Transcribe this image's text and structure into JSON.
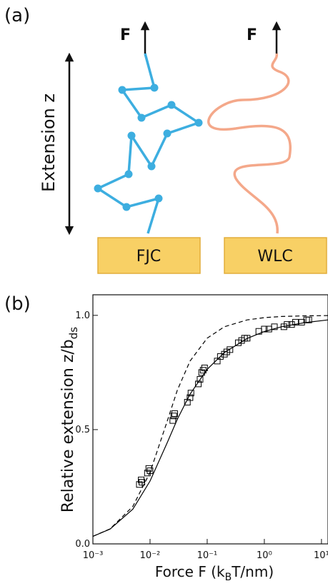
{
  "panel_a": {
    "label": "(a)",
    "force_left": "F",
    "force_right": "F",
    "extension": "Extension z",
    "box_left": "FJC",
    "box_right": "WLC"
  },
  "chart_data": {
    "type": "line",
    "panel_label": "(b)",
    "y_label": {
      "text": "Relative extension z/b",
      "subscript": "ds"
    },
    "x_label": {
      "before": "Force F (k",
      "subscript": "B",
      "after": "T/nm)"
    },
    "xscale": "log",
    "xlim": [
      0.001,
      13
    ],
    "ylim": [
      0,
      1.09
    ],
    "xticks": [
      {
        "value": 0.001,
        "label": "10⁻³"
      },
      {
        "value": 0.01,
        "label": "10⁻²"
      },
      {
        "value": 0.1,
        "label": "10⁻¹"
      },
      {
        "value": 1,
        "label": "10⁰"
      },
      {
        "value": 10,
        "label": "10¹"
      }
    ],
    "yticks": [
      {
        "value": 0,
        "label": "0.0"
      },
      {
        "value": 0.5,
        "label": "0.5"
      },
      {
        "value": 1,
        "label": "1.0"
      }
    ],
    "series": [
      {
        "mode": "line",
        "style": "solid",
        "color": "#000000",
        "x": [
          0.001,
          0.002,
          0.005,
          0.01,
          0.02,
          0.03,
          0.05,
          0.1,
          0.2,
          0.5,
          1,
          2,
          5,
          13
        ],
        "values": [
          0.033,
          0.065,
          0.152,
          0.275,
          0.443,
          0.545,
          0.655,
          0.764,
          0.837,
          0.899,
          0.929,
          0.95,
          0.968,
          0.98
        ]
      },
      {
        "mode": "line",
        "style": "dashed",
        "color": "#000000",
        "x": [
          0.001,
          0.002,
          0.005,
          0.01,
          0.02,
          0.03,
          0.05,
          0.1,
          0.2,
          0.5,
          1,
          2,
          5,
          13
        ],
        "values": [
          0.033,
          0.066,
          0.164,
          0.313,
          0.537,
          0.672,
          0.8,
          0.9,
          0.95,
          0.98,
          0.99,
          0.995,
          0.998,
          0.999
        ]
      },
      {
        "mode": "markers",
        "marker": "square",
        "color": "#000000",
        "x": [
          0.0065,
          0.007,
          0.0072,
          0.009,
          0.0095,
          0.01,
          0.025,
          0.026,
          0.027,
          0.045,
          0.05,
          0.052,
          0.07,
          0.075,
          0.08,
          0.085,
          0.09,
          0.15,
          0.17,
          0.2,
          0.22,
          0.25,
          0.35,
          0.4,
          0.45,
          0.5,
          0.8,
          1,
          1.2,
          1.5,
          2.2,
          2.5,
          3,
          3.5,
          4.5,
          5.5,
          6
        ],
        "values": [
          0.26,
          0.28,
          0.27,
          0.31,
          0.33,
          0.32,
          0.54,
          0.56,
          0.57,
          0.62,
          0.64,
          0.66,
          0.7,
          0.72,
          0.75,
          0.76,
          0.77,
          0.8,
          0.82,
          0.83,
          0.84,
          0.85,
          0.88,
          0.89,
          0.9,
          0.9,
          0.93,
          0.94,
          0.94,
          0.95,
          0.95,
          0.96,
          0.96,
          0.97,
          0.97,
          0.98,
          0.98
        ]
      }
    ]
  }
}
